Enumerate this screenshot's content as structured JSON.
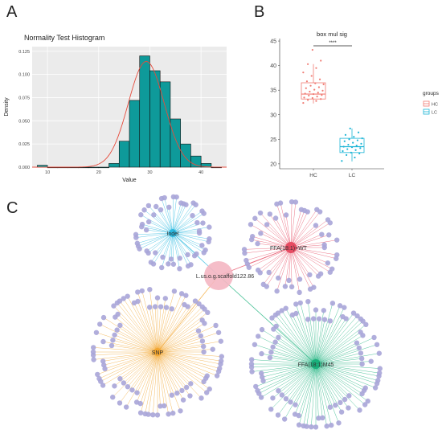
{
  "panels": {
    "a": "A",
    "b": "B",
    "c": "C"
  },
  "chart_data": [
    {
      "type": "bar",
      "title": "Normality Test Histogram",
      "xlabel": "Value",
      "ylabel": "Density",
      "xlim": [
        7,
        45
      ],
      "ylim": [
        0,
        0.13
      ],
      "x_ticks": [
        "10",
        "20",
        "30",
        "40"
      ],
      "y_ticks": [
        "0.000",
        "0.025",
        "0.050",
        "0.075",
        "0.100",
        "0.125"
      ],
      "bin_width": 2,
      "bins": [
        {
          "x0": 8,
          "value": 0.002
        },
        {
          "x0": 10,
          "value": 0.0
        },
        {
          "x0": 12,
          "value": 0.0
        },
        {
          "x0": 14,
          "value": 0.0
        },
        {
          "x0": 16,
          "value": 0.0
        },
        {
          "x0": 18,
          "value": 0.0
        },
        {
          "x0": 20,
          "value": 0.0
        },
        {
          "x0": 22,
          "value": 0.004
        },
        {
          "x0": 24,
          "value": 0.028
        },
        {
          "x0": 26,
          "value": 0.072
        },
        {
          "x0": 28,
          "value": 0.12
        },
        {
          "x0": 30,
          "value": 0.104
        },
        {
          "x0": 32,
          "value": 0.092
        },
        {
          "x0": 34,
          "value": 0.052
        },
        {
          "x0": 36,
          "value": 0.025
        },
        {
          "x0": 38,
          "value": 0.012
        },
        {
          "x0": 40,
          "value": 0.004
        },
        {
          "x0": 42,
          "value": 0.0
        }
      ],
      "density_curve": {
        "mean": 29.3,
        "sd": 3.5
      },
      "colors": {
        "bar": "#0e9a9a",
        "curve": "#e64b3c"
      }
    },
    {
      "type": "box",
      "title": "box mul sig",
      "significance": "****",
      "categories": [
        "HC",
        "LC"
      ],
      "y_ticks": [
        "20",
        "25",
        "30",
        "35",
        "40",
        "45"
      ],
      "ylim": [
        19,
        45.5
      ],
      "legend_title": "groups",
      "legend": [
        "HC",
        "LC"
      ],
      "legend_position": "right",
      "colors": {
        "HC": "#f07b73",
        "LC": "#1bb5d6"
      },
      "groups": [
        {
          "name": "HC",
          "min": 32.3,
          "q1": 33.2,
          "median": 34.2,
          "q3": 36.5,
          "max": 40.3,
          "points": [
            32.4,
            32.8,
            33.0,
            33.2,
            33.4,
            33.5,
            33.7,
            33.9,
            34.0,
            34.2,
            34.3,
            34.5,
            34.7,
            34.9,
            35.1,
            35.4,
            35.6,
            35.9,
            36.2,
            36.4,
            36.8,
            37.2,
            37.9,
            38.6,
            39.5,
            40.3,
            41.0,
            43.2
          ]
        },
        {
          "name": "LC",
          "min": 20.5,
          "q1": 22.3,
          "median": 23.5,
          "q3": 25.2,
          "max": 27.2,
          "points": [
            20.6,
            21.3,
            21.8,
            22.1,
            22.3,
            22.6,
            22.8,
            23.0,
            23.2,
            23.4,
            23.5,
            23.7,
            23.9,
            24.1,
            24.3,
            24.6,
            24.8,
            25.0,
            25.2,
            25.5,
            25.9,
            26.4,
            27.2
          ]
        }
      ]
    }
  ],
  "network": {
    "hubs": [
      {
        "id": "indel",
        "label": "Indel",
        "color": "#29b8df",
        "leaves": 55
      },
      {
        "id": "ffa1",
        "label": "FFA(18:1)+WT",
        "color": "#e64b62",
        "leaves": 55
      },
      {
        "id": "snp",
        "label": "SNP",
        "color": "#f2a52f",
        "leaves": 100
      },
      {
        "id": "ffa2",
        "label": "FFA(18:1)M45",
        "color": "#19b07b",
        "leaves": 100
      }
    ],
    "center": {
      "label": "L.us.o.g.scaffold122.86"
    },
    "node_color": "#a8a5d8"
  }
}
